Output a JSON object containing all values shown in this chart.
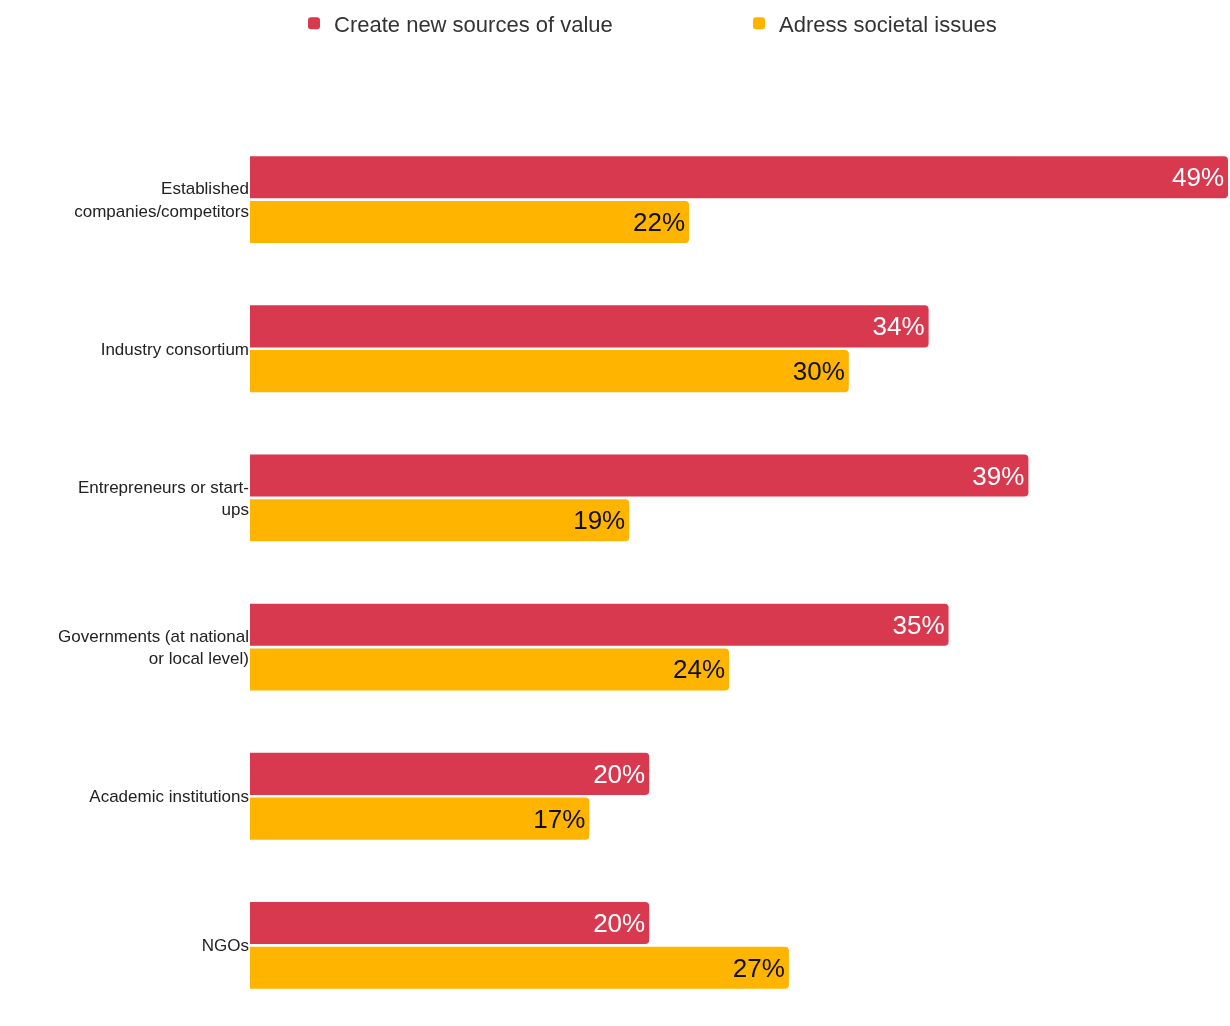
{
  "chart_data": {
    "type": "bar",
    "orientation": "horizontal",
    "categories": [
      "Established companies/competitors",
      "Industry consortium",
      "Entrepreneurs or start-ups",
      "Governments (at national or local level)",
      "Academic institutions",
      "NGOs"
    ],
    "series": [
      {
        "name": "Create new sources of value",
        "color": "#d9394f",
        "values": [
          49,
          34,
          39,
          35,
          20,
          20
        ],
        "value_labels": [
          "49%",
          "34%",
          "39%",
          "35%",
          "20%",
          "20%"
        ]
      },
      {
        "name": "Adress societal issues",
        "color": "#ffb400",
        "values": [
          22,
          30,
          19,
          24,
          17,
          27
        ],
        "value_labels": [
          "22%",
          "30%",
          "19%",
          "24%",
          "17%",
          "27%"
        ]
      }
    ],
    "xlim": [
      0,
      49
    ],
    "legend": "top"
  }
}
